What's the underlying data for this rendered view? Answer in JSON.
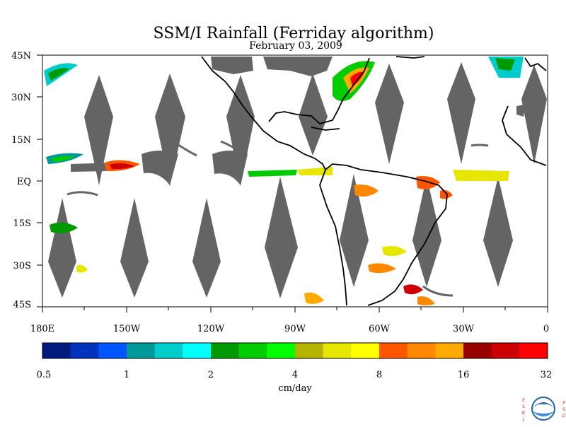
{
  "title": "SSM/I Rainfall (Ferriday algorithm)",
  "subtitle": "February 03, 2009",
  "lat_labels": [
    "45N",
    "30N",
    "15N",
    "EQ",
    "15S",
    "30S",
    "45S"
  ],
  "lon_labels": [
    "180E",
    "150W",
    "120W",
    "90W",
    "60W",
    "30W",
    "0"
  ],
  "colorbar": {
    "colors": [
      "#001a80",
      "#0033bb",
      "#0055ff",
      "#009999",
      "#00cccc",
      "#00ffff",
      "#009900",
      "#00cc00",
      "#00ff00",
      "#b3b300",
      "#e6e600",
      "#ffff00",
      "#ff5500",
      "#ff8800",
      "#ffaa00",
      "#990000",
      "#cc0000",
      "#ff0000"
    ],
    "tick_labels": [
      "0.5",
      "1",
      "2",
      "4",
      "8",
      "16",
      "32"
    ],
    "unit": "cm/day"
  },
  "logo": {
    "left_letters": [
      "E",
      "S",
      "R",
      "L"
    ],
    "right_letters": [
      "P",
      "S",
      "D"
    ],
    "center": "NOAA"
  },
  "colors": {
    "no_data": "#646464",
    "coast": "#000000",
    "background": "#ffffff"
  }
}
